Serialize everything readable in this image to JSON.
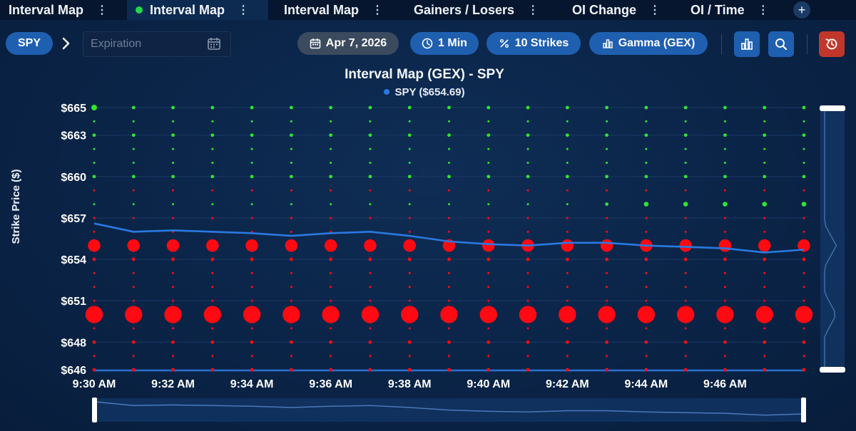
{
  "tabs": [
    {
      "label": "Interval Map",
      "active": false,
      "indicator": false
    },
    {
      "label": "Interval Map",
      "active": true,
      "indicator": true
    },
    {
      "label": "Interval Map",
      "active": false,
      "indicator": false
    },
    {
      "label": "Gainers / Losers",
      "active": false,
      "indicator": false
    },
    {
      "label": "OI Change",
      "active": false,
      "indicator": false
    },
    {
      "label": "OI / Time",
      "active": false,
      "indicator": false
    }
  ],
  "tab_add_label": "+",
  "toolbar": {
    "symbol": "SPY",
    "expiration_placeholder": "Expiration",
    "date": "Apr 7, 2026",
    "interval": "1 Min",
    "strikes": "10 Strikes",
    "metric": "Gamma (GEX)"
  },
  "icons": {
    "chevron": "chevron-right-icon",
    "calendar": "calendar-icon",
    "clock": "clock-icon",
    "percent": "percent-icon",
    "metric": "bar-chart-icon",
    "chart_type": "bar-chart-icon",
    "search": "search-icon",
    "reset": "history-icon"
  },
  "colors": {
    "positive": "#2ee62e",
    "negative": "#ff0a12",
    "price_line": "#2a79e0",
    "accent": "#1f5fb0",
    "reset": "#c2372b"
  },
  "chart_data": {
    "type": "scatter",
    "title": "Interval Map (GEX) - SPY",
    "ylabel": "Strike Price ($)",
    "xlabel": "",
    "ylim": [
      646,
      665
    ],
    "y_ticks": [
      "$665",
      "$663",
      "$660",
      "$657",
      "$654",
      "$651",
      "$648",
      "$646"
    ],
    "y_tick_values": [
      665,
      663,
      660,
      657,
      654,
      651,
      648,
      646
    ],
    "x_ticks": [
      "9:30 AM",
      "9:32 AM",
      "9:34 AM",
      "9:36 AM",
      "9:38 AM",
      "9:40 AM",
      "9:42 AM",
      "9:44 AM",
      "9:46 AM"
    ],
    "x_tick_minutes": [
      0,
      2,
      4,
      6,
      8,
      10,
      12,
      14,
      16
    ],
    "time_minutes": [
      0,
      1,
      2,
      3,
      4,
      5,
      6,
      7,
      8,
      9,
      10,
      11,
      12,
      13,
      14,
      15,
      16,
      17,
      18
    ],
    "strikes": [
      665,
      664,
      663,
      662,
      661,
      660,
      659,
      658,
      657,
      656,
      655,
      654,
      653,
      652,
      651,
      650,
      649,
      648,
      647,
      646
    ],
    "strike_gex": {
      "665": {
        "sign": "positive",
        "values": [
          4,
          2,
          2,
          2,
          2,
          2,
          2,
          2,
          2,
          2,
          2,
          2,
          2,
          2,
          2,
          2,
          2,
          2,
          2
        ]
      },
      "664": {
        "sign": "positive",
        "values": [
          1,
          1,
          1,
          1,
          1,
          1,
          1,
          1,
          1,
          1,
          1,
          1,
          1,
          1,
          1,
          1,
          1,
          1,
          1
        ]
      },
      "663": {
        "sign": "positive",
        "values": [
          2,
          2,
          2,
          2,
          2,
          2,
          2,
          2,
          2,
          2,
          2,
          2,
          2,
          2,
          2,
          2,
          2,
          2,
          2
        ]
      },
      "662": {
        "sign": "positive",
        "values": [
          1,
          1,
          1,
          1,
          1,
          1,
          1,
          1,
          1,
          1,
          1,
          1,
          1,
          1,
          1,
          1,
          1,
          1,
          1
        ]
      },
      "661": {
        "sign": "positive",
        "values": [
          1,
          1,
          1,
          1,
          1,
          1,
          1,
          1,
          1,
          1,
          1,
          1,
          1,
          1,
          1,
          1,
          1,
          1,
          1
        ]
      },
      "660": {
        "sign": "positive",
        "values": [
          2,
          2,
          2,
          2,
          2,
          2,
          2,
          2,
          2,
          2,
          2,
          2,
          2,
          2,
          2,
          2,
          2,
          2,
          2
        ]
      },
      "659": {
        "sign": "negative",
        "values": [
          1,
          1,
          1,
          1,
          1,
          1,
          1,
          1,
          1,
          1,
          1,
          1,
          1,
          1,
          1,
          1,
          1,
          1,
          1
        ]
      },
      "658": {
        "sign": "positive",
        "values": [
          1,
          1,
          1,
          1,
          1,
          1,
          1,
          1,
          1,
          1,
          1,
          1,
          1,
          2,
          3,
          3,
          3,
          3,
          3
        ]
      },
      "657": {
        "sign": "negative",
        "values": [
          1,
          1,
          1,
          1,
          1,
          1,
          1,
          1,
          1,
          1,
          1,
          1,
          1,
          1,
          1,
          1,
          1,
          1,
          1
        ]
      },
      "656": {
        "sign": "negative",
        "values": [
          1,
          1,
          1,
          1,
          1,
          1,
          1,
          1,
          1,
          1,
          1,
          1,
          1,
          1,
          1,
          1,
          1,
          1,
          1
        ]
      },
      "655": {
        "sign": "negative",
        "values": [
          8,
          8,
          8,
          8,
          8,
          8,
          8,
          8,
          8,
          8,
          8,
          8,
          8,
          8,
          8,
          8,
          8,
          8,
          8
        ]
      },
      "654": {
        "sign": "negative",
        "values": [
          2,
          2,
          2,
          2,
          2,
          2,
          2,
          2,
          2,
          2,
          2,
          2,
          2,
          2,
          2,
          2,
          2,
          2,
          2
        ]
      },
      "653": {
        "sign": "negative",
        "values": [
          1,
          1,
          1,
          1,
          1,
          1,
          1,
          1,
          1,
          1,
          1,
          1,
          1,
          1,
          1,
          1,
          1,
          1,
          1
        ]
      },
      "652": {
        "sign": "negative",
        "values": [
          1,
          1,
          1,
          1,
          1,
          1,
          1,
          1,
          1,
          1,
          1,
          1,
          1,
          1,
          1,
          1,
          1,
          1,
          1
        ]
      },
      "651": {
        "sign": "negative",
        "values": [
          1,
          1,
          1,
          1,
          1,
          1,
          1,
          1,
          1,
          1,
          1,
          1,
          1,
          1,
          1,
          1,
          1,
          1,
          1
        ]
      },
      "650": {
        "sign": "negative",
        "values": [
          12,
          12,
          12,
          12,
          12,
          12,
          12,
          12,
          12,
          12,
          12,
          12,
          12,
          12,
          12,
          12,
          12,
          12,
          12
        ]
      },
      "649": {
        "sign": "negative",
        "values": [
          1,
          1,
          1,
          1,
          1,
          1,
          1,
          1,
          1,
          1,
          1,
          1,
          1,
          1,
          1,
          1,
          1,
          1,
          1
        ]
      },
      "648": {
        "sign": "negative",
        "values": [
          2,
          2,
          2,
          2,
          2,
          2,
          2,
          2,
          2,
          2,
          2,
          2,
          2,
          2,
          2,
          2,
          2,
          2,
          2
        ]
      },
      "647": {
        "sign": "negative",
        "values": [
          1,
          1,
          1,
          1,
          1,
          1,
          1,
          1,
          1,
          1,
          1,
          1,
          1,
          1,
          1,
          1,
          1,
          1,
          1
        ]
      },
      "646": {
        "sign": "negative",
        "values": [
          2,
          2,
          2,
          2,
          2,
          2,
          2,
          2,
          2,
          2,
          2,
          2,
          2,
          2,
          2,
          2,
          2,
          2,
          2
        ]
      }
    },
    "series": [
      {
        "name": "SPY ($654.69)",
        "values": [
          656.6,
          656.0,
          656.1,
          656.0,
          655.9,
          655.7,
          655.9,
          656.0,
          655.7,
          655.3,
          655.1,
          655.0,
          655.2,
          655.2,
          655.0,
          654.9,
          654.8,
          654.5,
          654.7
        ]
      }
    ],
    "grid": true,
    "legend_position": "top-center"
  }
}
